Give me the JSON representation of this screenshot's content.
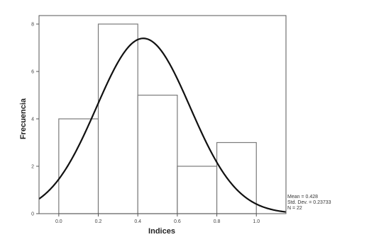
{
  "chart_data": {
    "type": "bar",
    "title": "",
    "xlabel": "Indices",
    "ylabel": "Frecuencia",
    "bins": [
      {
        "start": 0.0,
        "end": 0.2,
        "count": 4
      },
      {
        "start": 0.2,
        "end": 0.4,
        "count": 8
      },
      {
        "start": 0.4,
        "end": 0.6,
        "count": 5
      },
      {
        "start": 0.6,
        "end": 0.8,
        "count": 2
      },
      {
        "start": 0.8,
        "end": 1.0,
        "count": 3
      }
    ],
    "xlim": [
      -0.1,
      1.15
    ],
    "ylim": [
      0,
      8
    ],
    "x_ticks": [
      {
        "value": 0.0,
        "label": "0.0"
      },
      {
        "value": 0.2,
        "label": "0.2"
      },
      {
        "value": 0.4,
        "label": "0.4"
      },
      {
        "value": 0.6,
        "label": "0.6"
      },
      {
        "value": 0.8,
        "label": "0.8"
      },
      {
        "value": 1.0,
        "label": "1.0"
      }
    ],
    "y_ticks": [
      {
        "value": 0,
        "label": "0"
      },
      {
        "value": 2,
        "label": "2"
      },
      {
        "value": 4,
        "label": "4"
      },
      {
        "value": 6,
        "label": "6"
      },
      {
        "value": 8,
        "label": "8"
      }
    ],
    "normal_curve": {
      "mean": 0.428,
      "std": 0.23733
    },
    "stats": {
      "mean_label": "Mean = 0.428",
      "std_label": "Std. Dev. = 0.23733",
      "n_label": "N = 22"
    },
    "grid": false,
    "legend": "none"
  }
}
